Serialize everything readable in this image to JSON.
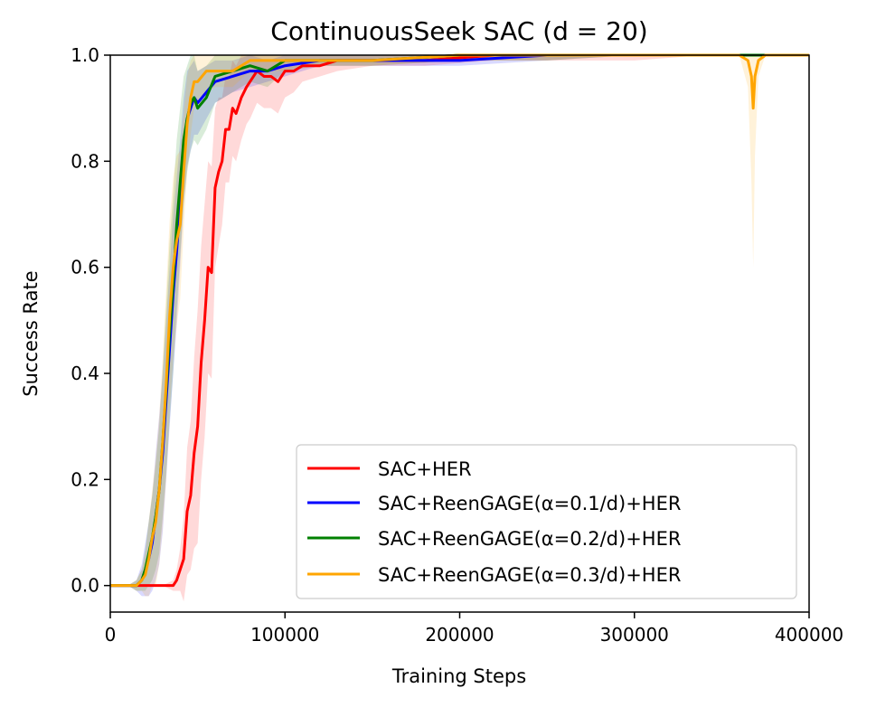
{
  "chart_data": {
    "type": "line",
    "title": "ContinuousSeek SAC (d = 20)",
    "xlabel": "Training Steps",
    "ylabel": "Success Rate",
    "xlim": [
      0,
      400000
    ],
    "ylim": [
      -0.05,
      1.0
    ],
    "xticks": [
      0,
      100000,
      200000,
      300000,
      400000
    ],
    "xtick_labels": [
      "0",
      "100000",
      "200000",
      "300000",
      "400000"
    ],
    "yticks": [
      0.0,
      0.2,
      0.4,
      0.6,
      0.8,
      1.0
    ],
    "ytick_labels": [
      "0.0",
      "0.2",
      "0.4",
      "0.6",
      "0.8",
      "1.0"
    ],
    "grid": false,
    "legend_position": "lower-right",
    "series": [
      {
        "name": "SAC+HER",
        "color": "#ff0000",
        "x": [
          0,
          20000,
          30000,
          36000,
          38000,
          40000,
          42000,
          44000,
          46000,
          48000,
          50000,
          52000,
          54000,
          56000,
          58000,
          60000,
          62000,
          64000,
          66000,
          68000,
          70000,
          72000,
          75000,
          78000,
          80000,
          84000,
          88000,
          92000,
          96000,
          100000,
          105000,
          110000,
          120000,
          130000,
          150000,
          180000,
          220000,
          260000,
          300000,
          340000,
          370000,
          400000
        ],
        "y": [
          0.0,
          0.0,
          0.0,
          0.0,
          0.01,
          0.03,
          0.05,
          0.14,
          0.17,
          0.25,
          0.3,
          0.42,
          0.5,
          0.6,
          0.59,
          0.75,
          0.78,
          0.8,
          0.86,
          0.86,
          0.9,
          0.89,
          0.92,
          0.94,
          0.95,
          0.97,
          0.96,
          0.96,
          0.95,
          0.97,
          0.97,
          0.98,
          0.98,
          0.99,
          0.99,
          0.99,
          1.0,
          1.0,
          1.0,
          1.0,
          1.0,
          1.0
        ],
        "band": [
          0.0,
          0.0,
          0.0,
          0.01,
          0.02,
          0.04,
          0.08,
          0.12,
          0.14,
          0.18,
          0.22,
          0.22,
          0.22,
          0.2,
          0.2,
          0.15,
          0.14,
          0.12,
          0.1,
          0.1,
          0.09,
          0.09,
          0.08,
          0.07,
          0.07,
          0.06,
          0.06,
          0.06,
          0.06,
          0.05,
          0.04,
          0.03,
          0.02,
          0.02,
          0.01,
          0.01,
          0.01,
          0.01,
          0.01,
          0.0,
          0.0,
          0.0
        ]
      },
      {
        "name": "SAC+ReenGAGE(α=0.1/d)+HER",
        "color": "#0000ff",
        "x": [
          0,
          10000,
          15000,
          18000,
          20000,
          22000,
          24000,
          26000,
          28000,
          30000,
          32000,
          34000,
          36000,
          38000,
          40000,
          42000,
          44000,
          46000,
          48000,
          50000,
          55000,
          60000,
          70000,
          80000,
          90000,
          100000,
          120000,
          150000,
          200000,
          250000,
          300000,
          350000,
          400000
        ],
        "y": [
          0.0,
          0.0,
          0.0,
          0.01,
          0.03,
          0.05,
          0.08,
          0.13,
          0.18,
          0.25,
          0.35,
          0.45,
          0.55,
          0.63,
          0.72,
          0.82,
          0.88,
          0.9,
          0.92,
          0.91,
          0.93,
          0.95,
          0.96,
          0.97,
          0.97,
          0.98,
          0.99,
          0.99,
          0.99,
          1.0,
          1.0,
          1.0,
          1.0
        ],
        "band": [
          0.0,
          0.0,
          0.01,
          0.03,
          0.05,
          0.07,
          0.09,
          0.12,
          0.14,
          0.15,
          0.15,
          0.15,
          0.15,
          0.14,
          0.12,
          0.1,
          0.09,
          0.08,
          0.07,
          0.06,
          0.05,
          0.04,
          0.03,
          0.03,
          0.02,
          0.02,
          0.01,
          0.01,
          0.01,
          0.01,
          0.0,
          0.0,
          0.0
        ]
      },
      {
        "name": "SAC+ReenGAGE(α=0.2/d)+HER",
        "color": "#008000",
        "x": [
          0,
          10000,
          15000,
          18000,
          20000,
          22000,
          24000,
          26000,
          28000,
          30000,
          32000,
          34000,
          36000,
          38000,
          40000,
          42000,
          44000,
          46000,
          48000,
          50000,
          55000,
          60000,
          70000,
          80000,
          90000,
          100000,
          120000,
          150000,
          200000,
          250000,
          300000,
          350000,
          400000
        ],
        "y": [
          0.0,
          0.0,
          0.0,
          0.01,
          0.03,
          0.06,
          0.09,
          0.13,
          0.18,
          0.27,
          0.37,
          0.48,
          0.57,
          0.68,
          0.76,
          0.84,
          0.88,
          0.91,
          0.92,
          0.9,
          0.92,
          0.96,
          0.97,
          0.98,
          0.97,
          0.99,
          0.99,
          0.99,
          1.0,
          1.0,
          1.0,
          1.0,
          1.0
        ],
        "band": [
          0.0,
          0.0,
          0.01,
          0.02,
          0.04,
          0.06,
          0.08,
          0.1,
          0.12,
          0.14,
          0.16,
          0.17,
          0.17,
          0.16,
          0.14,
          0.12,
          0.1,
          0.09,
          0.08,
          0.07,
          0.06,
          0.05,
          0.04,
          0.03,
          0.03,
          0.02,
          0.01,
          0.01,
          0.01,
          0.01,
          0.0,
          0.0,
          0.0
        ]
      },
      {
        "name": "SAC+ReenGAGE(α=0.3/d)+HER",
        "color": "#ffa500",
        "x": [
          0,
          10000,
          15000,
          18000,
          20000,
          22000,
          24000,
          26000,
          28000,
          30000,
          32000,
          34000,
          36000,
          38000,
          40000,
          42000,
          44000,
          46000,
          48000,
          50000,
          55000,
          60000,
          70000,
          80000,
          90000,
          100000,
          120000,
          150000,
          200000,
          250000,
          300000,
          360000,
          365000,
          367000,
          368000,
          369000,
          371000,
          375000,
          400000
        ],
        "y": [
          0.0,
          0.0,
          0.0,
          0.01,
          0.02,
          0.05,
          0.09,
          0.12,
          0.18,
          0.27,
          0.38,
          0.51,
          0.6,
          0.65,
          0.68,
          0.78,
          0.87,
          0.92,
          0.95,
          0.95,
          0.97,
          0.97,
          0.97,
          0.99,
          0.99,
          0.99,
          0.99,
          0.99,
          1.0,
          1.0,
          1.0,
          1.0,
          0.99,
          0.96,
          0.9,
          0.96,
          0.99,
          1.0,
          1.0
        ],
        "band": [
          0.0,
          0.0,
          0.01,
          0.02,
          0.04,
          0.07,
          0.09,
          0.12,
          0.14,
          0.16,
          0.18,
          0.18,
          0.17,
          0.16,
          0.14,
          0.11,
          0.09,
          0.07,
          0.05,
          0.05,
          0.04,
          0.03,
          0.03,
          0.02,
          0.02,
          0.02,
          0.01,
          0.01,
          0.01,
          0.01,
          0.0,
          0.0,
          0.05,
          0.2,
          0.3,
          0.15,
          0.03,
          0.0,
          0.0
        ]
      }
    ]
  }
}
